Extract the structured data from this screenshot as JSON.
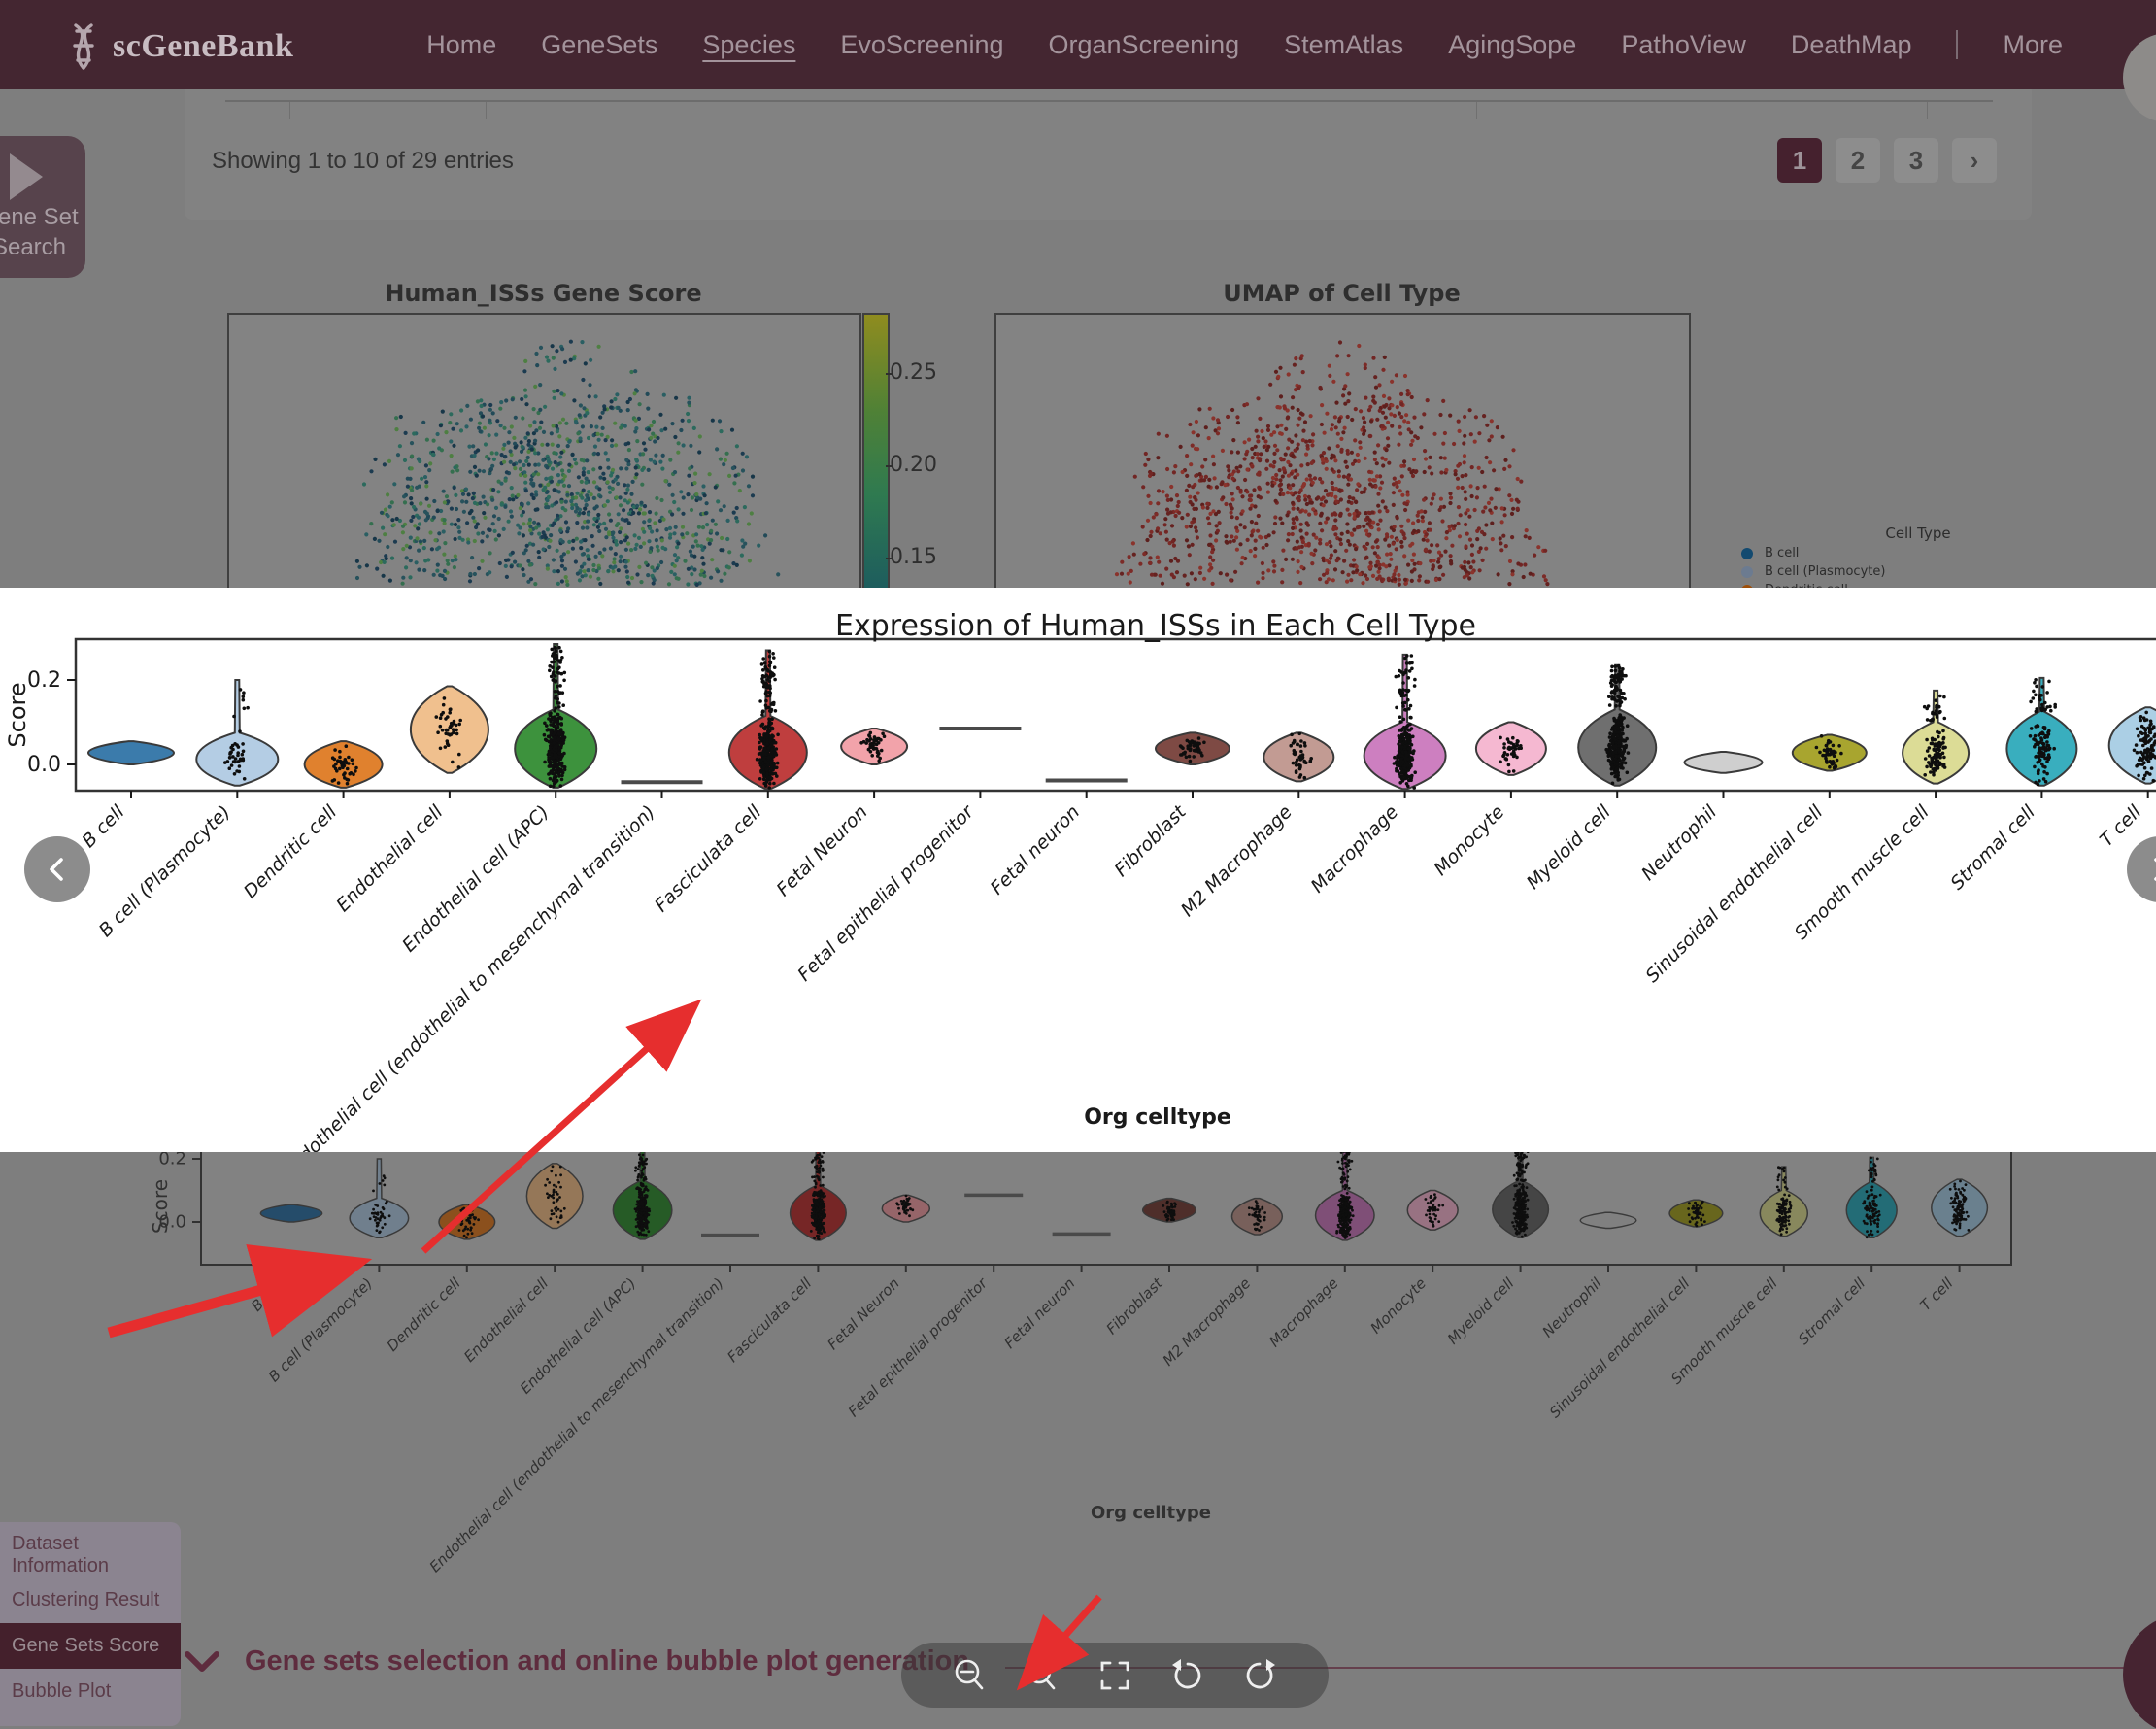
{
  "header": {
    "brand": "scGeneBank",
    "nav_items": [
      "Home",
      "GeneSets",
      "Species",
      "EvoScreening",
      "OrganScreening",
      "StemAtlas",
      "AgingSope",
      "PathoView",
      "DeathMap"
    ],
    "active_item": "Species",
    "more_label": "More",
    "bg_color": "#442631"
  },
  "gene_set_button": {
    "line1": "Gene Set",
    "line2": "Search"
  },
  "results_bar": {
    "status": "Showing 1 to 10 of 29 entries",
    "pages": [
      "1",
      "2",
      "3"
    ],
    "active_page": "1",
    "next_icon": "›"
  },
  "figures": {
    "gene_score": {
      "title": "Human_ISSs Gene Score",
      "colorbar_ticks": [
        "0.25",
        "0.20",
        "0.15"
      ],
      "colormap": "viridis"
    },
    "umap": {
      "title": "UMAP of Cell Type",
      "point_color": "#8c2f28",
      "legend_title": "Cell Type",
      "legend": [
        {
          "label": "B cell",
          "color": "#1f77b4"
        },
        {
          "label": "B cell (Plasmocyte)",
          "color": "#aec7e8"
        },
        {
          "label": "Dendritic cell",
          "color": "#ff7f0e"
        }
      ]
    }
  },
  "lightbox": {
    "title": "Expression of Human_ISSs in Each Cell Type"
  },
  "chart_data": {
    "type": "violin",
    "title": "Expression of Human_ISSs in Each Cell Type",
    "xlabel": "Org celltype",
    "ylabel": "Score",
    "ytick_labels": [
      "0.2",
      "0.0"
    ],
    "ytick_values": [
      0.2,
      0.0
    ],
    "ylim": [
      -0.062,
      0.3
    ],
    "grid": false,
    "categories": [
      "B cell",
      "B cell (Plasmocyte)",
      "Dendritic cell",
      "Endothelial cell",
      "Endothelial cell (APC)",
      "Endothelial cell (endothelial to mesenchymal transition)",
      "Fasciculata cell",
      "Fetal Neuron",
      "Fetal epithelial progenitor",
      "Fetal neuron",
      "Fibroblast",
      "M2 Macrophage",
      "Macrophage",
      "Monocyte",
      "Myeloid cell",
      "Neutrophil",
      "Sinusoidal endothelial cell",
      "Smooth muscle cell",
      "Stromal cell",
      "T cell"
    ],
    "series": [
      {
        "label": "B cell",
        "color": "#3b7bab",
        "kind": "violin",
        "body": [
          0.0,
          0.055
        ],
        "hw": 44,
        "points": "none"
      },
      {
        "label": "B cell (Plasmocyte)",
        "color": "#b4cde4",
        "kind": "violin",
        "body": [
          -0.05,
          0.075
        ],
        "tail": 0.2,
        "hw": 42,
        "points": "sparse"
      },
      {
        "label": "Dendritic cell",
        "color": "#e0812e",
        "kind": "violin",
        "body": [
          -0.055,
          0.055
        ],
        "hw": 40,
        "points": "sparse"
      },
      {
        "label": "Endothelial cell",
        "color": "#f0c08e",
        "kind": "violin",
        "body": [
          -0.02,
          0.185
        ],
        "hw": 40,
        "points": "sparse"
      },
      {
        "label": "Endothelial cell (APC)",
        "color": "#3d923d",
        "kind": "violin",
        "body": [
          -0.055,
          0.13
        ],
        "tail": 0.285,
        "hw": 42,
        "points": "dense"
      },
      {
        "label": "Endothelial cell (endothelial to mesenchymal transition)",
        "color": "#555555",
        "kind": "line",
        "value": -0.042
      },
      {
        "label": "Fasciculata cell",
        "color": "#bf3e3e",
        "kind": "violin",
        "body": [
          -0.058,
          0.115
        ],
        "tail": 0.27,
        "hw": 40,
        "points": "dense"
      },
      {
        "label": "Fetal Neuron",
        "color": "#f2a3aa",
        "kind": "violin",
        "body": [
          0.0,
          0.085
        ],
        "hw": 34,
        "points": "sparse"
      },
      {
        "label": "Fetal epithelial progenitor",
        "color": "#555555",
        "kind": "line",
        "value": 0.085
      },
      {
        "label": "Fetal neuron",
        "color": "#555555",
        "kind": "line",
        "value": -0.038
      },
      {
        "label": "Fibroblast",
        "color": "#7e4a44",
        "kind": "violin",
        "body": [
          0.0,
          0.075
        ],
        "hw": 38,
        "points": "sparse"
      },
      {
        "label": "M2 Macrophage",
        "color": "#c29b93",
        "kind": "violin",
        "body": [
          -0.04,
          0.075
        ],
        "hw": 36,
        "points": "sparse"
      },
      {
        "label": "Macrophage",
        "color": "#cd7fc0",
        "kind": "violin",
        "body": [
          -0.058,
          0.1
        ],
        "tail": 0.26,
        "hw": 42,
        "points": "dense"
      },
      {
        "label": "Monocyte",
        "color": "#f5b8d1",
        "kind": "violin",
        "body": [
          -0.025,
          0.1
        ],
        "hw": 36,
        "points": "sparse"
      },
      {
        "label": "Myeloid cell",
        "color": "#6f6f6f",
        "kind": "violin",
        "body": [
          -0.05,
          0.13
        ],
        "tail": 0.235,
        "hw": 40,
        "points": "dense"
      },
      {
        "label": "Neutrophil",
        "color": "#cfcfcf",
        "kind": "violin",
        "body": [
          -0.02,
          0.03
        ],
        "hw": 40,
        "points": "none"
      },
      {
        "label": "Sinusoidal endothelial cell",
        "color": "#a8a52f",
        "kind": "violin",
        "body": [
          -0.015,
          0.07
        ],
        "hw": 38,
        "points": "sparse"
      },
      {
        "label": "Smooth muscle cell",
        "color": "#dcdc96",
        "kind": "violin",
        "body": [
          -0.045,
          0.1
        ],
        "tail": 0.175,
        "hw": 34,
        "points": "medium"
      },
      {
        "label": "Stromal cell",
        "color": "#39aebe",
        "kind": "violin",
        "body": [
          -0.05,
          0.125
        ],
        "tail": 0.205,
        "hw": 36,
        "points": "medium"
      },
      {
        "label": "T cell",
        "color": "#abcfe5",
        "kind": "violin",
        "body": [
          -0.045,
          0.135
        ],
        "hw": 40,
        "points": "medium"
      }
    ]
  },
  "sidebar": {
    "items": [
      "Dataset Information",
      "Clustering Result",
      "Gene Sets Score",
      "Bubble Plot"
    ],
    "active": "Gene Sets Score"
  },
  "section": {
    "heading": "Gene sets selection and online bubble plot generation"
  },
  "viewer_toolbar": {
    "icons": [
      "zoom-out",
      "zoom-in",
      "fullscreen",
      "rotate-left",
      "rotate-right"
    ]
  }
}
